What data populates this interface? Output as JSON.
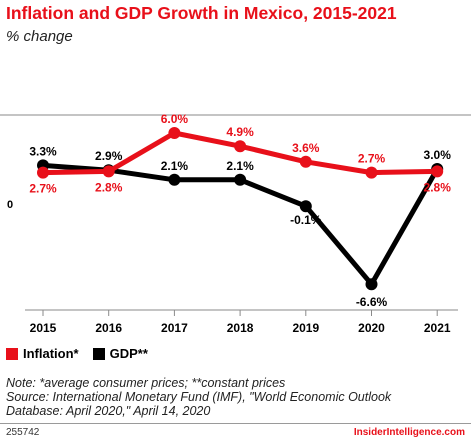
{
  "header": {
    "title": "Inflation and GDP Growth in Mexico, 2015-2021",
    "subtitle": "% change"
  },
  "chart_data": {
    "type": "line",
    "title": "Inflation and GDP Growth in Mexico, 2015-2021",
    "subtitle": "% change",
    "categories": [
      "2015",
      "2016",
      "2017",
      "2018",
      "2019",
      "2020",
      "2021"
    ],
    "zero_label": "0",
    "series": [
      {
        "name": "Inflation*",
        "color": "#e8101a",
        "values": [
          2.7,
          2.8,
          6.0,
          4.9,
          3.6,
          2.7,
          2.8
        ],
        "labels": [
          "2.7%",
          "2.8%",
          "6.0%",
          "4.9%",
          "3.6%",
          "2.7%",
          "2.8%"
        ]
      },
      {
        "name": "GDP**",
        "color": "#000000",
        "values": [
          3.3,
          2.9,
          2.1,
          2.1,
          -0.1,
          -6.6,
          3.0
        ],
        "labels": [
          "3.3%",
          "2.9%",
          "2.1%",
          "2.1%",
          "-0.1%",
          "-6.6%",
          "3.0%"
        ]
      }
    ],
    "ylim": [
      -8.0,
      8.0
    ],
    "grid": false,
    "legend": "bottom-left"
  },
  "legend": {
    "inflation_label": "Inflation*",
    "gdp_label": "GDP**",
    "inflation_color": "#e8101a",
    "gdp_color": "#000000"
  },
  "notes": {
    "line1": "Note: *average consumer prices; **constant prices",
    "line2": "Source: International Monetary Fund (IMF), \"World Economic Outlook",
    "line3": "Database: April 2020,\" April 14, 2020"
  },
  "footer": {
    "id": "255742",
    "brand": "InsiderIntelligence.com"
  }
}
